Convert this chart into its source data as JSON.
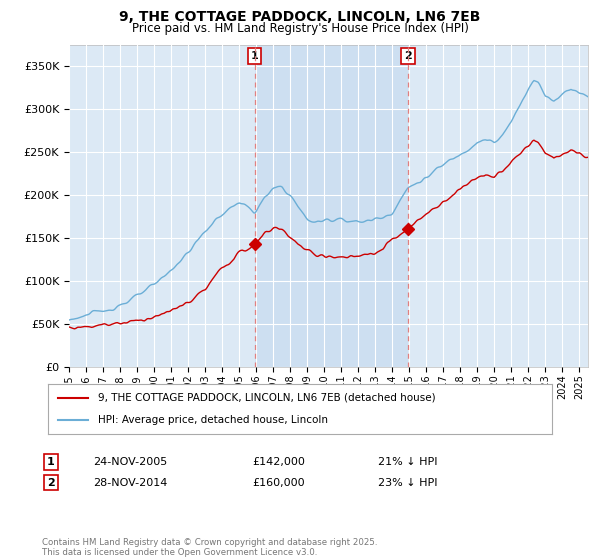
{
  "title": "9, THE COTTAGE PADDOCK, LINCOLN, LN6 7EB",
  "subtitle": "Price paid vs. HM Land Registry's House Price Index (HPI)",
  "red_label": "9, THE COTTAGE PADDOCK, LINCOLN, LN6 7EB (detached house)",
  "blue_label": "HPI: Average price, detached house, Lincoln",
  "purchase1_date": "24-NOV-2005",
  "purchase1_price": 142000,
  "purchase1_hpi_diff": "21% ↓ HPI",
  "purchase2_date": "28-NOV-2014",
  "purchase2_price": 160000,
  "purchase2_hpi_diff": "23% ↓ HPI",
  "footer": "Contains HM Land Registry data © Crown copyright and database right 2025.\nThis data is licensed under the Open Government Licence v3.0.",
  "ylim_max": 375000,
  "background_color": "#ffffff",
  "plot_bg_color": "#dce9f5",
  "plot_bg_between_color": "#c8dcf0",
  "red_color": "#cc0000",
  "blue_color": "#6baed6",
  "grid_color": "#ffffff",
  "vline_color": "#e08080",
  "xmin": 1995,
  "xmax": 2025.5,
  "yticks": [
    0,
    50000,
    100000,
    150000,
    200000,
    250000,
    300000,
    350000
  ]
}
